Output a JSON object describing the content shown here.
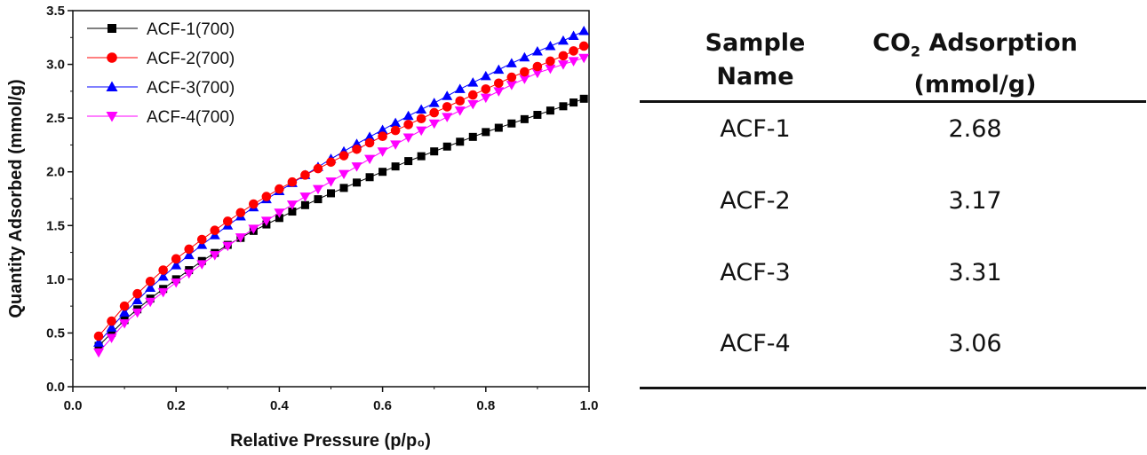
{
  "chart_data": {
    "type": "scatter",
    "title": "",
    "xlabel": "Relative Pressure (p/p₀)",
    "ylabel": "Quantity Adsorbed (mmol/g)",
    "xlim": [
      0.0,
      1.0
    ],
    "ylim": [
      0.0,
      3.5
    ],
    "xticks": [
      "0.0",
      "0.2",
      "0.4",
      "0.6",
      "0.8",
      "1.0"
    ],
    "yticks": [
      "0.0",
      "0.5",
      "1.0",
      "1.5",
      "2.0",
      "2.5",
      "3.0",
      "3.5"
    ],
    "legend_position": "top-left",
    "x": [
      0.05,
      0.075,
      0.1,
      0.125,
      0.15,
      0.175,
      0.2,
      0.225,
      0.25,
      0.275,
      0.3,
      0.325,
      0.35,
      0.375,
      0.4,
      0.425,
      0.45,
      0.475,
      0.5,
      0.525,
      0.55,
      0.575,
      0.6,
      0.625,
      0.65,
      0.675,
      0.7,
      0.725,
      0.75,
      0.775,
      0.8,
      0.825,
      0.85,
      0.875,
      0.9,
      0.925,
      0.95,
      0.97,
      0.99
    ],
    "series": [
      {
        "name": "ACF-1(700)",
        "color": "#000000",
        "marker": "square",
        "anchors": [
          [
            0.05,
            0.38
          ],
          [
            0.1,
            0.62
          ],
          [
            0.15,
            0.82
          ],
          [
            0.2,
            1.0
          ],
          [
            0.25,
            1.17
          ],
          [
            0.3,
            1.32
          ],
          [
            0.35,
            1.45
          ],
          [
            0.4,
            1.57
          ],
          [
            0.45,
            1.69
          ],
          [
            0.5,
            1.8
          ],
          [
            0.55,
            1.9
          ],
          [
            0.6,
            2.0
          ],
          [
            0.65,
            2.1
          ],
          [
            0.7,
            2.19
          ],
          [
            0.75,
            2.28
          ],
          [
            0.8,
            2.37
          ],
          [
            0.85,
            2.45
          ],
          [
            0.9,
            2.53
          ],
          [
            0.95,
            2.61
          ],
          [
            0.99,
            2.68
          ]
        ]
      },
      {
        "name": "ACF-2(700)",
        "color": "#ff0000",
        "marker": "circle",
        "anchors": [
          [
            0.05,
            0.47
          ],
          [
            0.1,
            0.75
          ],
          [
            0.15,
            0.98
          ],
          [
            0.2,
            1.19
          ],
          [
            0.25,
            1.37
          ],
          [
            0.3,
            1.54
          ],
          [
            0.35,
            1.7
          ],
          [
            0.4,
            1.84
          ],
          [
            0.45,
            1.97
          ],
          [
            0.5,
            2.09
          ],
          [
            0.55,
            2.21
          ],
          [
            0.6,
            2.33
          ],
          [
            0.65,
            2.44
          ],
          [
            0.7,
            2.55
          ],
          [
            0.75,
            2.66
          ],
          [
            0.8,
            2.77
          ],
          [
            0.85,
            2.88
          ],
          [
            0.9,
            2.98
          ],
          [
            0.95,
            3.08
          ],
          [
            0.99,
            3.17
          ]
        ]
      },
      {
        "name": "ACF-3(700)",
        "color": "#0000ff",
        "marker": "triangle-up",
        "anchors": [
          [
            0.05,
            0.41
          ],
          [
            0.1,
            0.69
          ],
          [
            0.15,
            0.92
          ],
          [
            0.2,
            1.13
          ],
          [
            0.25,
            1.32
          ],
          [
            0.3,
            1.5
          ],
          [
            0.35,
            1.67
          ],
          [
            0.4,
            1.82
          ],
          [
            0.45,
            1.97
          ],
          [
            0.5,
            2.12
          ],
          [
            0.55,
            2.26
          ],
          [
            0.6,
            2.39
          ],
          [
            0.65,
            2.52
          ],
          [
            0.7,
            2.64
          ],
          [
            0.75,
            2.77
          ],
          [
            0.8,
            2.89
          ],
          [
            0.85,
            3.01
          ],
          [
            0.9,
            3.12
          ],
          [
            0.95,
            3.22
          ],
          [
            0.99,
            3.31
          ]
        ]
      },
      {
        "name": "ACF-4(700)",
        "color": "#ff00ff",
        "marker": "triangle-down",
        "anchors": [
          [
            0.05,
            0.32
          ],
          [
            0.1,
            0.59
          ],
          [
            0.15,
            0.79
          ],
          [
            0.2,
            0.97
          ],
          [
            0.25,
            1.14
          ],
          [
            0.3,
            1.31
          ],
          [
            0.35,
            1.47
          ],
          [
            0.4,
            1.62
          ],
          [
            0.45,
            1.77
          ],
          [
            0.5,
            1.91
          ],
          [
            0.55,
            2.05
          ],
          [
            0.6,
            2.19
          ],
          [
            0.65,
            2.32
          ],
          [
            0.7,
            2.45
          ],
          [
            0.75,
            2.57
          ],
          [
            0.8,
            2.69
          ],
          [
            0.85,
            2.81
          ],
          [
            0.9,
            2.92
          ],
          [
            0.95,
            3.0
          ],
          [
            0.99,
            3.06
          ]
        ]
      }
    ]
  },
  "table": {
    "headers": {
      "sample_line1": "Sample",
      "sample_line2": "Name",
      "co2_prefix": "CO",
      "co2_sub": "2",
      "co2_suffix": " Adsorption",
      "unit": "(mmol/g)"
    },
    "rows": [
      {
        "name": "ACF-1",
        "value": "2.68"
      },
      {
        "name": "ACF-2",
        "value": "3.17"
      },
      {
        "name": "ACF-3",
        "value": "3.31"
      },
      {
        "name": "ACF-4",
        "value": "3.06"
      }
    ]
  }
}
